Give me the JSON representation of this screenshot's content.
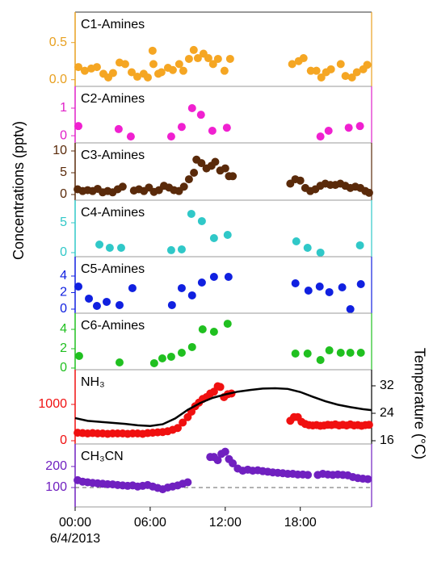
{
  "chart_data": [
    {
      "type": "scatter",
      "title": "C1-Amines",
      "ylabel": "Concentrations (pptv)",
      "xlim": [
        0,
        23.7
      ],
      "ylim": [
        -0.09,
        0.91
      ],
      "yticks": [
        {
          "value": 0,
          "label": "0.0"
        },
        {
          "value": 0.5,
          "label": "0.5"
        }
      ],
      "axis_color": "#e8a020",
      "series": [
        {
          "color": "#f5a623",
          "x": [
            0.26,
            0.77,
            1.29,
            1.74,
            2.26,
            2.65,
            3.03,
            3.55,
            4.0,
            4.52,
            4.97,
            5.48,
            5.81,
            6.19,
            6.26,
            6.65,
            6.9,
            7.42,
            7.81,
            8.32,
            8.65,
            9.1,
            9.48,
            9.81,
            10.26,
            10.65,
            11.03,
            11.42,
            11.94,
            12.39,
            17.35,
            17.87,
            18.26,
            18.84,
            19.29,
            19.68,
            20.06,
            20.45,
            21.23,
            21.61,
            22.13,
            22.52,
            23.03,
            23.35
          ],
          "values": [
            0.17,
            0.12,
            0.15,
            0.17,
            0.08,
            0.03,
            0.09,
            0.23,
            0.21,
            0.1,
            0.04,
            0.08,
            0.03,
            0.39,
            0.21,
            0.08,
            0.1,
            0.16,
            0.13,
            0.21,
            0.12,
            0.28,
            0.4,
            0.29,
            0.35,
            0.29,
            0.21,
            0.28,
            0.12,
            0.28,
            0.21,
            0.25,
            0.29,
            0.12,
            0.12,
            0.03,
            0.1,
            0.14,
            0.21,
            0.05,
            0.03,
            0.1,
            0.14,
            0.2
          ]
        }
      ]
    },
    {
      "type": "scatter",
      "title": "C2-Amines",
      "xlim": [
        0,
        23.7
      ],
      "ylim": [
        -0.26,
        1.79
      ],
      "yticks": [
        0,
        1
      ],
      "axis_color": "#e020c8",
      "series": [
        {
          "color": "#f020d0",
          "x": [
            0.26,
            3.48,
            4.45,
            7.68,
            8.52,
            9.35,
            10.06,
            10.97,
            12.13,
            19.61,
            20.26,
            21.87,
            22.77
          ],
          "values": [
            0.35,
            0.24,
            -0.03,
            -0.03,
            0.32,
            1.0,
            0.76,
            0.18,
            0.29,
            -0.03,
            0.18,
            0.29,
            0.35
          ]
        }
      ]
    },
    {
      "type": "scatter",
      "title": "C3-Amines",
      "xlim": [
        0,
        23.7
      ],
      "ylim": [
        -1.3,
        11.85
      ],
      "yticks": [
        0,
        5,
        10
      ],
      "axis_color": "#5a2a0a",
      "series": [
        {
          "color": "#5a2a0a",
          "x": [
            0.2,
            0.6,
            1.0,
            1.4,
            1.8,
            2.2,
            2.6,
            3.0,
            3.4,
            3.8,
            4.7,
            5.1,
            5.5,
            5.9,
            6.3,
            6.7,
            7.1,
            7.5,
            7.9,
            8.3,
            8.7,
            9.1,
            9.5,
            9.7,
            10.1,
            10.5,
            10.9,
            11.2,
            11.6,
            12.0,
            12.3,
            12.6,
            17.2,
            17.6,
            18.0,
            18.4,
            18.8,
            19.2,
            19.6,
            20.0,
            20.4,
            20.8,
            21.2,
            21.6,
            22.0,
            22.4,
            22.8,
            23.2,
            23.5
          ],
          "values": [
            1.2,
            0.8,
            1.0,
            0.8,
            1.3,
            0.5,
            0.8,
            0.5,
            1.2,
            1.8,
            0.9,
            1.2,
            0.8,
            1.6,
            0.6,
            1.0,
            2.0,
            1.6,
            1.0,
            0.8,
            1.8,
            3.5,
            5.0,
            8.0,
            7.2,
            6.0,
            6.6,
            7.5,
            5.5,
            6.0,
            4.2,
            4.2,
            2.5,
            3.5,
            3.2,
            1.5,
            0.8,
            1.2,
            2.0,
            2.5,
            2.2,
            2.2,
            2.5,
            2.0,
            1.5,
            1.8,
            1.5,
            0.8,
            0.4
          ]
        }
      ]
    },
    {
      "type": "scatter",
      "title": "C4-Amines",
      "xlim": [
        0,
        23.7
      ],
      "ylim": [
        -0.68,
        8.78
      ],
      "yticks": [
        0,
        5
      ],
      "axis_color": "#30c8c8",
      "series": [
        {
          "color": "#30c8c8",
          "x": [
            1.94,
            2.77,
            3.68,
            7.68,
            8.52,
            9.29,
            10.13,
            11.1,
            12.19,
            17.68,
            18.58,
            19.61,
            22.77
          ],
          "values": [
            1.35,
            0.81,
            0.81,
            0.41,
            0.54,
            6.49,
            5.27,
            2.43,
            2.97,
            1.89,
            0.81,
            0,
            1.22
          ]
        }
      ]
    },
    {
      "type": "scatter",
      "title": "C5-Amines",
      "xlim": [
        0,
        23.7
      ],
      "ylim": [
        -0.49,
        6.34
      ],
      "yticks": [
        0,
        2,
        4
      ],
      "axis_color": "#1020e0",
      "series": [
        {
          "color": "#1020e0",
          "x": [
            0.26,
            1.1,
            1.74,
            2.52,
            3.55,
            4.58,
            7.74,
            8.52,
            9.35,
            10.13,
            11.1,
            12.26,
            17.61,
            18.65,
            19.55,
            20.32,
            21.35,
            22.0,
            22.84
          ],
          "values": [
            2.73,
            1.27,
            0.39,
            0.88,
            0.49,
            2.54,
            0.49,
            2.54,
            1.66,
            3.22,
            3.9,
            3.9,
            3.12,
            2.24,
            2.73,
            2.05,
            2.63,
            0,
            3.02
          ]
        }
      ]
    },
    {
      "type": "scatter",
      "title": "C6-Amines",
      "xlim": [
        0,
        23.7
      ],
      "ylim": [
        -0.17,
        5.67
      ],
      "yticks": [
        0,
        2,
        4
      ],
      "axis_color": "#20c020",
      "series": [
        {
          "color": "#20c020",
          "x": [
            0.32,
            3.55,
            6.32,
            6.97,
            7.68,
            8.52,
            9.35,
            10.19,
            11.1,
            12.19,
            17.61,
            18.58,
            19.61,
            20.32,
            21.23,
            22.0,
            22.84
          ],
          "values": [
            1.25,
            0.58,
            0.5,
            1.0,
            1.17,
            1.58,
            2.17,
            4.0,
            3.75,
            4.58,
            1.5,
            1.5,
            0.83,
            1.83,
            1.58,
            1.58,
            1.58
          ]
        }
      ]
    },
    {
      "type": "scatter",
      "title": "NH₃",
      "y2label": "Temperature (°C)",
      "xlim": [
        0,
        23.7
      ],
      "ylim": [
        -89,
        1956
      ],
      "yticks": [
        0,
        1000
      ],
      "y2lim": [
        15.06,
        36.7
      ],
      "y2ticks": [
        16,
        24,
        32
      ],
      "axis_color": "#f01010",
      "series": [
        {
          "color": "#f01010",
          "x": [
            0.2,
            0.6,
            1.0,
            1.4,
            1.8,
            2.2,
            2.6,
            3.0,
            3.4,
            3.8,
            4.2,
            4.6,
            5.0,
            5.4,
            5.8,
            6.2,
            6.6,
            7.0,
            7.4,
            7.8,
            8.2,
            8.6,
            9.0,
            9.3,
            9.6,
            9.9,
            10.2,
            10.5,
            10.8,
            11.1,
            11.4,
            11.6,
            11.9,
            12.2,
            12.5,
            17.2,
            17.5,
            17.8,
            18.1,
            18.4,
            18.7,
            19.0,
            19.3,
            19.6,
            19.9,
            20.2,
            20.5,
            20.8,
            21.1,
            21.4,
            21.7,
            22.0,
            22.3,
            22.6,
            22.9,
            23.2,
            23.5
          ],
          "values": [
            220,
            210,
            200,
            210,
            200,
            200,
            190,
            200,
            200,
            200,
            190,
            200,
            200,
            190,
            210,
            220,
            230,
            240,
            260,
            300,
            350,
            500,
            650,
            800,
            950,
            1050,
            1150,
            1200,
            1300,
            1350,
            1500,
            1480,
            1200,
            1280,
            1300,
            550,
            650,
            650,
            520,
            460,
            430,
            420,
            430,
            410,
            420,
            440,
            430,
            450,
            420,
            440,
            420,
            450,
            420,
            430,
            410,
            430,
            440
          ]
        },
        {
          "type": "line",
          "axis": "y2",
          "color": "#000000",
          "x": [
            0,
            1,
            2,
            3,
            4,
            5,
            6,
            7,
            8,
            9,
            10,
            11,
            12,
            13,
            14,
            15,
            16,
            17,
            18,
            19,
            20,
            21,
            22,
            23,
            23.7
          ],
          "values": [
            22.6,
            21.8,
            21.5,
            21.2,
            20.9,
            20.5,
            20.3,
            20.8,
            22.5,
            25,
            27,
            28.5,
            29.5,
            30.3,
            30.8,
            31.2,
            31.3,
            31.1,
            30.2,
            28.8,
            27.5,
            26.5,
            25.8,
            25.2,
            24.9
          ]
        }
      ]
    },
    {
      "type": "scatter",
      "title": "CH₃CN",
      "xlabel": "6/4/2013",
      "xlim": [
        0,
        23.7
      ],
      "ylim": [
        8,
        307
      ],
      "yticks": [
        100,
        200
      ],
      "hline": 100,
      "axis_color": "#7020c0",
      "xticks": [
        {
          "value": 0,
          "label": "00:00"
        },
        {
          "value": 6,
          "label": "06:00"
        },
        {
          "value": 12,
          "label": "12:00"
        },
        {
          "value": 18,
          "label": "18:00"
        }
      ],
      "series": [
        {
          "color": "#7020c0",
          "x": [
            0.2,
            0.6,
            1.0,
            1.4,
            1.8,
            2.2,
            2.6,
            3.0,
            3.4,
            3.8,
            4.2,
            4.6,
            5.0,
            5.4,
            5.8,
            6.2,
            6.6,
            7.0,
            7.4,
            7.8,
            8.2,
            8.6,
            9.0,
            10.8,
            11.1,
            11.4,
            11.7,
            12.0,
            12.3,
            12.6,
            13.0,
            13.4,
            13.8,
            14.2,
            14.6,
            15.0,
            15.4,
            15.8,
            16.2,
            16.6,
            17.0,
            17.4,
            17.8,
            18.2,
            18.6,
            19.4,
            19.8,
            20.2,
            20.6,
            21.0,
            21.4,
            21.8,
            22.2,
            22.6,
            23.0,
            23.4
          ],
          "values": [
            135,
            128,
            125,
            122,
            120,
            118,
            116,
            115,
            112,
            110,
            108,
            110,
            105,
            108,
            112,
            105,
            98,
            92,
            100,
            105,
            110,
            118,
            125,
            245,
            245,
            230,
            260,
            270,
            235,
            215,
            190,
            180,
            185,
            180,
            182,
            178,
            175,
            172,
            170,
            168,
            165,
            165,
            162,
            162,
            160,
            160,
            165,
            162,
            160,
            162,
            160,
            158,
            150,
            145,
            142,
            140
          ]
        }
      ]
    }
  ]
}
